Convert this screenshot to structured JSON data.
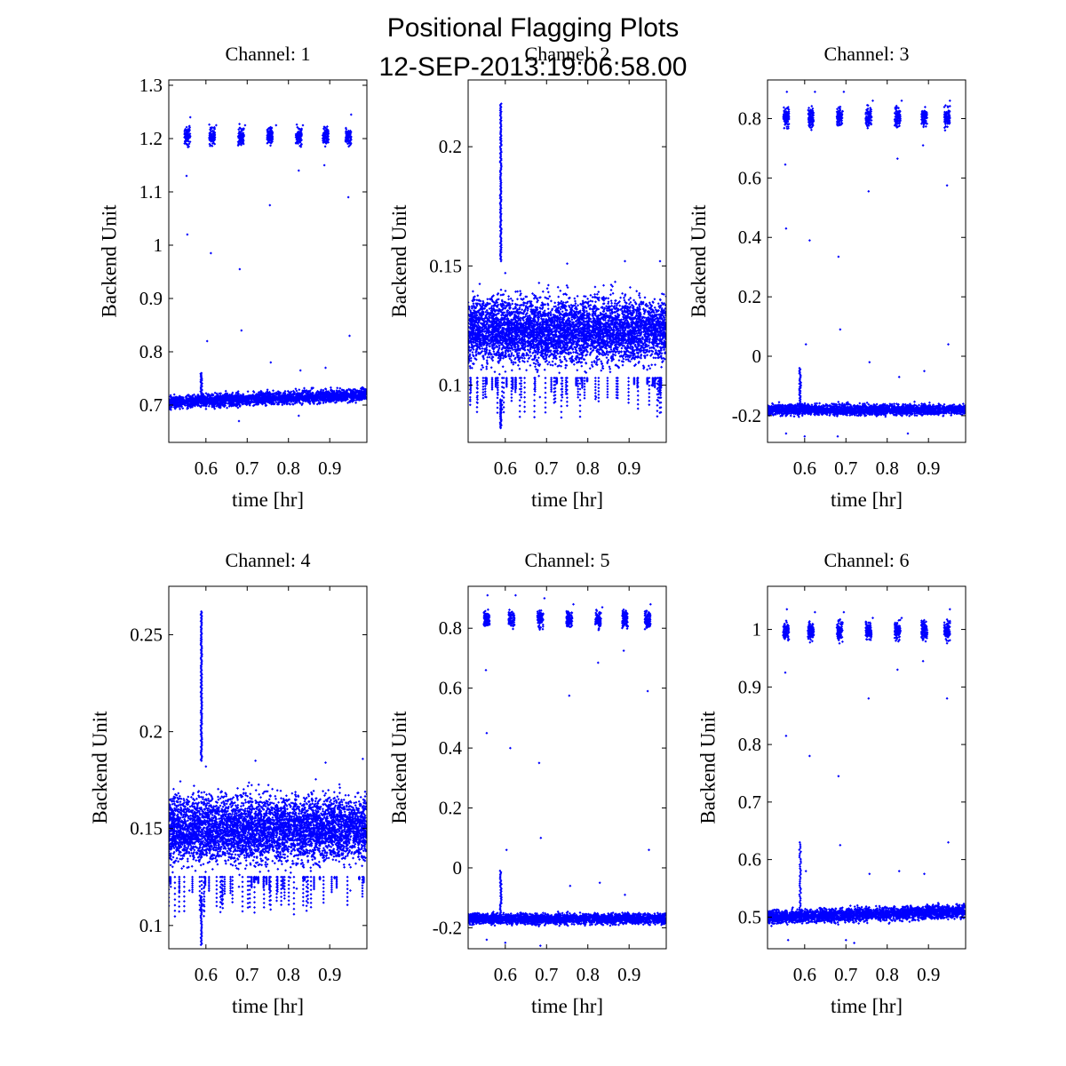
{
  "figure": {
    "title": "Positional Flagging Plots",
    "subtitle": "12-SEP-2013:19:06:58.00"
  },
  "colors": {
    "marker": "#0000ff",
    "axes": "#000000",
    "background": "#ffffff"
  },
  "chart_data": [
    {
      "type": "scatter",
      "title": "Channel: 1",
      "xlabel": "time [hr]",
      "ylabel": "Backend Unit",
      "xlim": [
        0.51,
        0.99
      ],
      "ylim": [
        0.63,
        1.31
      ],
      "xticks": [
        "0.6",
        "0.7",
        "0.8",
        "0.9"
      ],
      "xtick_values": [
        0.6,
        0.7,
        0.8,
        0.9
      ],
      "yticks": [
        "0.7",
        "0.8",
        "0.9",
        "1",
        "1.1",
        "1.2",
        "1.3"
      ],
      "ytick_values": [
        0.7,
        0.8,
        0.9,
        1.0,
        1.1,
        1.2,
        1.3
      ],
      "baseline": {
        "start": 0.705,
        "end": 0.72,
        "spread": 0.02
      },
      "spike": {
        "x": 0.589,
        "top": 0.76
      },
      "clusters": {
        "x": [
          0.555,
          0.615,
          0.685,
          0.755,
          0.825,
          0.89,
          0.945
        ],
        "center": 1.205,
        "spread": 0.018
      },
      "outliers": [
        [
          0.553,
          1.13
        ],
        [
          0.555,
          1.02
        ],
        [
          0.562,
          1.24
        ],
        [
          0.603,
          0.82
        ],
        [
          0.612,
          0.985
        ],
        [
          0.625,
          1.225
        ],
        [
          0.682,
          0.955
        ],
        [
          0.686,
          0.84
        ],
        [
          0.695,
          1.225
        ],
        [
          0.755,
          1.075
        ],
        [
          0.757,
          0.78
        ],
        [
          0.77,
          1.225
        ],
        [
          0.825,
          1.14
        ],
        [
          0.829,
          0.765
        ],
        [
          0.835,
          1.225
        ],
        [
          0.887,
          1.15
        ],
        [
          0.89,
          0.77
        ],
        [
          0.945,
          1.09
        ],
        [
          0.948,
          0.83
        ],
        [
          0.952,
          1.245
        ],
        [
          0.68,
          0.67
        ],
        [
          0.825,
          0.68
        ]
      ]
    },
    {
      "type": "scatter",
      "title": "Channel: 2",
      "xlabel": "time [hr]",
      "ylabel": "Backend Unit",
      "xlim": [
        0.51,
        0.99
      ],
      "ylim": [
        0.076,
        0.228
      ],
      "xticks": [
        "0.6",
        "0.7",
        "0.8",
        "0.9"
      ],
      "xtick_values": [
        0.6,
        0.7,
        0.8,
        0.9
      ],
      "yticks": [
        "0.1",
        "0.15",
        "0.2"
      ],
      "ytick_values": [
        0.1,
        0.15,
        0.2
      ],
      "band": {
        "center": 0.123,
        "half_width": 0.02,
        "max": 0.152,
        "min": 0.094
      },
      "spike": {
        "x": 0.589,
        "top": 0.218,
        "bottom": 0.082
      },
      "outliers": [
        [
          0.515,
          0.094
        ],
        [
          0.554,
          0.095
        ],
        [
          0.6,
          0.147
        ],
        [
          0.684,
          0.095
        ],
        [
          0.75,
          0.151
        ],
        [
          0.82,
          0.095
        ],
        [
          0.89,
          0.152
        ],
        [
          0.955,
          0.1
        ],
        [
          0.975,
          0.152
        ]
      ]
    },
    {
      "type": "scatter",
      "title": "Channel: 3",
      "xlabel": "time [hr]",
      "ylabel": "Backend Unit",
      "xlim": [
        0.51,
        0.99
      ],
      "ylim": [
        -0.29,
        0.93
      ],
      "xticks": [
        "0.6",
        "0.7",
        "0.8",
        "0.9"
      ],
      "xtick_values": [
        0.6,
        0.7,
        0.8,
        0.9
      ],
      "yticks": [
        "-0.2",
        "0",
        "0.2",
        "0.4",
        "0.6",
        "0.8"
      ],
      "ytick_values": [
        -0.2,
        0.0,
        0.2,
        0.4,
        0.6,
        0.8
      ],
      "baseline": {
        "start": -0.18,
        "end": -0.18,
        "spread": 0.03
      },
      "spike": {
        "x": 0.589,
        "top": -0.04
      },
      "clusters": {
        "x": [
          0.555,
          0.615,
          0.685,
          0.755,
          0.825,
          0.89,
          0.945
        ],
        "center": 0.805,
        "spread": 0.035
      },
      "outliers": [
        [
          0.553,
          0.645
        ],
        [
          0.555,
          0.43
        ],
        [
          0.557,
          0.89
        ],
        [
          0.612,
          0.39
        ],
        [
          0.603,
          0.04
        ],
        [
          0.625,
          0.89
        ],
        [
          0.682,
          0.335
        ],
        [
          0.686,
          0.09
        ],
        [
          0.695,
          0.89
        ],
        [
          0.755,
          0.555
        ],
        [
          0.757,
          -0.02
        ],
        [
          0.765,
          0.86
        ],
        [
          0.825,
          0.665
        ],
        [
          0.829,
          -0.07
        ],
        [
          0.835,
          0.86
        ],
        [
          0.887,
          0.71
        ],
        [
          0.89,
          -0.05
        ],
        [
          0.945,
          0.575
        ],
        [
          0.948,
          0.04
        ],
        [
          0.952,
          0.86
        ],
        [
          0.555,
          -0.26
        ],
        [
          0.6,
          -0.27
        ],
        [
          0.68,
          -0.27
        ],
        [
          0.85,
          -0.26
        ]
      ]
    },
    {
      "type": "scatter",
      "title": "Channel: 4",
      "xlabel": "time [hr]",
      "ylabel": "Backend Unit",
      "xlim": [
        0.51,
        0.99
      ],
      "ylim": [
        0.088,
        0.275
      ],
      "xticks": [
        "0.6",
        "0.7",
        "0.8",
        "0.9"
      ],
      "xtick_values": [
        0.6,
        0.7,
        0.8,
        0.9
      ],
      "yticks": [
        "0.1",
        "0.15",
        "0.2",
        "0.25"
      ],
      "ytick_values": [
        0.1,
        0.15,
        0.2,
        0.25
      ],
      "band": {
        "center": 0.15,
        "half_width": 0.025,
        "max": 0.185,
        "min": 0.115
      },
      "spike": {
        "x": 0.589,
        "top": 0.262,
        "bottom": 0.09
      },
      "outliers": [
        [
          0.515,
          0.12
        ],
        [
          0.56,
          0.118
        ],
        [
          0.6,
          0.182
        ],
        [
          0.68,
          0.12
        ],
        [
          0.72,
          0.185
        ],
        [
          0.82,
          0.119
        ],
        [
          0.89,
          0.184
        ],
        [
          0.95,
          0.118
        ],
        [
          0.98,
          0.186
        ]
      ]
    },
    {
      "type": "scatter",
      "title": "Channel: 5",
      "xlabel": "time [hr]",
      "ylabel": "Backend Unit",
      "xlim": [
        0.51,
        0.99
      ],
      "ylim": [
        -0.27,
        0.94
      ],
      "xticks": [
        "0.6",
        "0.7",
        "0.8",
        "0.9"
      ],
      "xtick_values": [
        0.6,
        0.7,
        0.8,
        0.9
      ],
      "yticks": [
        "-0.2",
        "0",
        "0.2",
        "0.4",
        "0.6",
        "0.8"
      ],
      "ytick_values": [
        -0.2,
        0.0,
        0.2,
        0.4,
        0.6,
        0.8
      ],
      "baseline": {
        "start": -0.17,
        "end": -0.17,
        "spread": 0.03
      },
      "spike": {
        "x": 0.589,
        "top": -0.01
      },
      "clusters": {
        "x": [
          0.555,
          0.615,
          0.685,
          0.755,
          0.825,
          0.89,
          0.945
        ],
        "center": 0.83,
        "spread": 0.03
      },
      "outliers": [
        [
          0.553,
          0.66
        ],
        [
          0.555,
          0.45
        ],
        [
          0.557,
          0.91
        ],
        [
          0.612,
          0.4
        ],
        [
          0.603,
          0.06
        ],
        [
          0.625,
          0.91
        ],
        [
          0.682,
          0.35
        ],
        [
          0.686,
          0.1
        ],
        [
          0.695,
          0.9
        ],
        [
          0.755,
          0.575
        ],
        [
          0.757,
          -0.06
        ],
        [
          0.765,
          0.88
        ],
        [
          0.825,
          0.685
        ],
        [
          0.829,
          -0.05
        ],
        [
          0.835,
          0.87
        ],
        [
          0.887,
          0.725
        ],
        [
          0.89,
          -0.09
        ],
        [
          0.945,
          0.59
        ],
        [
          0.948,
          0.06
        ],
        [
          0.952,
          0.88
        ],
        [
          0.555,
          -0.24
        ],
        [
          0.6,
          -0.25
        ],
        [
          0.685,
          -0.26
        ]
      ]
    },
    {
      "type": "scatter",
      "title": "Channel: 6",
      "xlabel": "time [hr]",
      "ylabel": "Backend Unit",
      "xlim": [
        0.51,
        0.99
      ],
      "ylim": [
        0.445,
        1.075
      ],
      "xticks": [
        "0.6",
        "0.7",
        "0.8",
        "0.9"
      ],
      "xtick_values": [
        0.6,
        0.7,
        0.8,
        0.9
      ],
      "yticks": [
        "0.5",
        "0.6",
        "0.7",
        "0.8",
        "0.9",
        "1"
      ],
      "ytick_values": [
        0.5,
        0.6,
        0.7,
        0.8,
        0.9,
        1.0
      ],
      "baseline": {
        "start": 0.5,
        "end": 0.51,
        "spread": 0.02
      },
      "spike": {
        "x": 0.589,
        "top": 0.63
      },
      "clusters": {
        "x": [
          0.555,
          0.615,
          0.685,
          0.755,
          0.825,
          0.89,
          0.945
        ],
        "center": 0.998,
        "spread": 0.018
      },
      "outliers": [
        [
          0.553,
          0.925
        ],
        [
          0.555,
          0.815
        ],
        [
          0.557,
          1.035
        ],
        [
          0.612,
          0.78
        ],
        [
          0.603,
          0.58
        ],
        [
          0.625,
          1.03
        ],
        [
          0.682,
          0.745
        ],
        [
          0.686,
          0.625
        ],
        [
          0.695,
          1.03
        ],
        [
          0.755,
          0.88
        ],
        [
          0.757,
          0.575
        ],
        [
          0.765,
          1.02
        ],
        [
          0.825,
          0.93
        ],
        [
          0.829,
          0.58
        ],
        [
          0.835,
          1.02
        ],
        [
          0.887,
          0.945
        ],
        [
          0.89,
          0.575
        ],
        [
          0.945,
          0.88
        ],
        [
          0.948,
          0.63
        ],
        [
          0.952,
          1.035
        ],
        [
          0.56,
          0.46
        ],
        [
          0.7,
          0.46
        ],
        [
          0.72,
          0.455
        ]
      ]
    }
  ]
}
